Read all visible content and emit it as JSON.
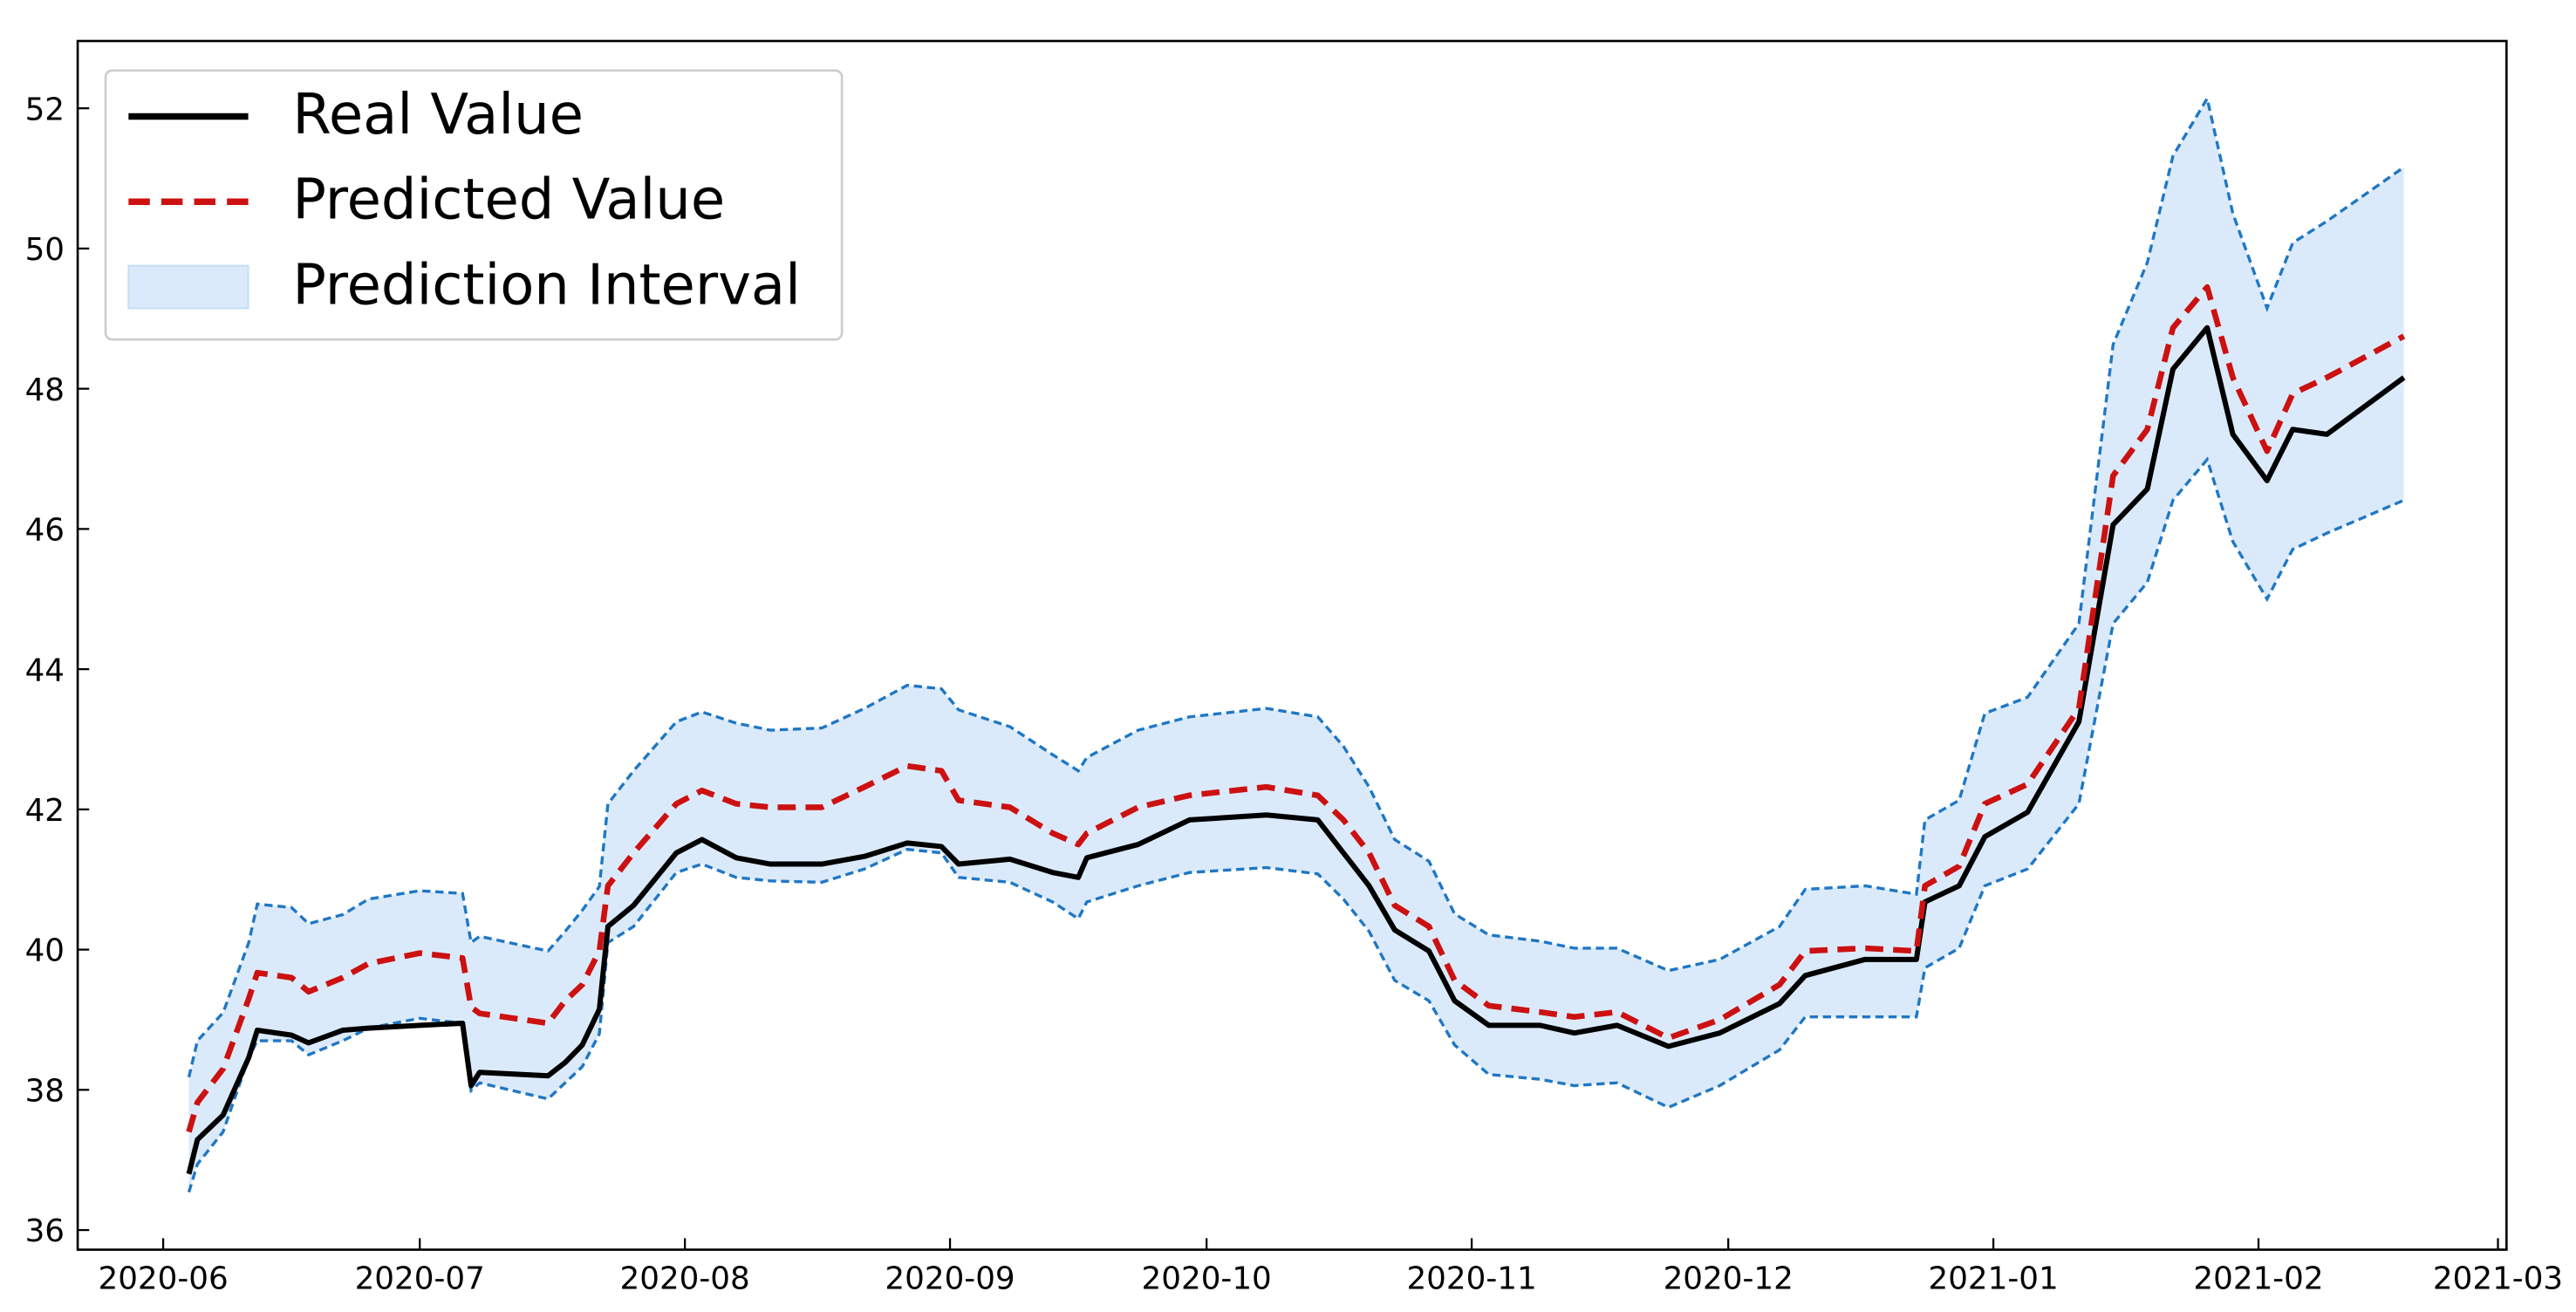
{
  "chart_data": {
    "type": "line",
    "x": [
      "2020-06-04",
      "2020-06-05",
      "2020-06-08",
      "2020-06-11",
      "2020-06-12",
      "2020-06-16",
      "2020-06-18",
      "2020-06-22",
      "2020-06-25",
      "2020-07-01",
      "2020-07-06",
      "2020-07-07",
      "2020-07-08",
      "2020-07-16",
      "2020-07-18",
      "2020-07-20",
      "2020-07-22",
      "2020-07-23",
      "2020-07-26",
      "2020-07-31",
      "2020-08-03",
      "2020-08-07",
      "2020-08-11",
      "2020-08-17",
      "2020-08-22",
      "2020-08-27",
      "2020-08-31",
      "2020-09-02",
      "2020-09-08",
      "2020-09-13",
      "2020-09-16",
      "2020-09-17",
      "2020-09-23",
      "2020-09-29",
      "2020-10-08",
      "2020-10-14",
      "2020-10-17",
      "2020-10-20",
      "2020-10-23",
      "2020-10-27",
      "2020-10-30",
      "2020-11-03",
      "2020-11-09",
      "2020-11-13",
      "2020-11-18",
      "2020-11-24",
      "2020-11-30",
      "2020-12-07",
      "2020-12-10",
      "2020-12-17",
      "2020-12-23",
      "2020-12-24",
      "2020-12-28",
      "2020-12-31",
      "2021-01-05",
      "2021-01-11",
      "2021-01-15",
      "2021-01-19",
      "2021-01-22",
      "2021-01-26",
      "2021-01-29",
      "2021-02-02",
      "2021-02-05",
      "2021-02-09",
      "2021-02-18"
    ],
    "series": [
      {
        "name": "Real Value",
        "color": "#000000",
        "style": "solid",
        "values": [
          36.8,
          37.29,
          37.64,
          38.46,
          38.85,
          38.78,
          38.67,
          38.85,
          38.88,
          38.92,
          38.95,
          38.06,
          38.25,
          38.2,
          38.39,
          38.64,
          39.15,
          40.33,
          40.63,
          41.38,
          41.57,
          41.31,
          41.22,
          41.22,
          41.33,
          41.52,
          41.47,
          41.22,
          41.29,
          41.1,
          41.03,
          41.31,
          41.5,
          41.85,
          41.92,
          41.85,
          41.38,
          40.91,
          40.28,
          39.98,
          39.27,
          38.92,
          38.92,
          38.81,
          38.92,
          38.62,
          38.81,
          39.23,
          39.63,
          39.86,
          39.86,
          40.68,
          40.91,
          41.61,
          41.96,
          43.25,
          46.06,
          46.57,
          48.28,
          48.87,
          47.35,
          46.69,
          47.42,
          47.35,
          48.16
        ]
      },
      {
        "name": "Predicted Value",
        "color": "#cc1111",
        "style": "dashed",
        "values": [
          37.4,
          37.82,
          38.3,
          39.3,
          39.67,
          39.6,
          39.4,
          39.6,
          39.8,
          39.95,
          39.88,
          39.18,
          39.09,
          38.95,
          39.27,
          39.5,
          39.98,
          40.91,
          41.38,
          42.08,
          42.27,
          42.08,
          42.03,
          42.03,
          42.32,
          42.62,
          42.55,
          42.13,
          42.03,
          41.66,
          41.5,
          41.66,
          42.03,
          42.2,
          42.32,
          42.2,
          41.85,
          41.38,
          40.63,
          40.33,
          39.56,
          39.2,
          39.11,
          39.04,
          39.11,
          38.74,
          39.0,
          39.5,
          39.98,
          40.02,
          39.98,
          40.91,
          41.19,
          42.08,
          42.36,
          43.44,
          46.76,
          47.42,
          48.87,
          49.45,
          48.16,
          47.11,
          47.93,
          48.16,
          48.75
        ]
      }
    ],
    "interval": {
      "name": "Prediction Interval",
      "color": "#dbeafa",
      "edge_color": "#1f77c4",
      "lower": [
        36.54,
        36.94,
        37.4,
        38.46,
        38.7,
        38.7,
        38.5,
        38.7,
        38.88,
        39.02,
        38.95,
        37.99,
        38.1,
        37.87,
        38.1,
        38.33,
        38.8,
        40.1,
        40.33,
        41.1,
        41.22,
        41.03,
        40.98,
        40.96,
        41.15,
        41.43,
        41.38,
        41.03,
        40.96,
        40.68,
        40.44,
        40.68,
        40.91,
        41.1,
        41.17,
        41.08,
        40.72,
        40.26,
        39.56,
        39.27,
        38.64,
        38.22,
        38.15,
        38.06,
        38.1,
        37.75,
        38.06,
        38.57,
        39.04,
        39.04,
        39.04,
        39.74,
        40.02,
        40.91,
        41.15,
        42.08,
        44.65,
        45.24,
        46.41,
        46.99,
        45.82,
        45.0,
        45.71,
        45.94,
        46.41
      ],
      "upper": [
        38.18,
        38.7,
        39.1,
        40.1,
        40.65,
        40.6,
        40.37,
        40.5,
        40.72,
        40.84,
        40.8,
        40.1,
        40.19,
        39.98,
        40.26,
        40.56,
        40.9,
        42.08,
        42.55,
        43.25,
        43.39,
        43.23,
        43.13,
        43.16,
        43.44,
        43.77,
        43.72,
        43.42,
        43.18,
        42.78,
        42.55,
        42.74,
        43.13,
        43.32,
        43.44,
        43.32,
        42.9,
        42.32,
        41.57,
        41.26,
        40.51,
        40.21,
        40.12,
        40.02,
        40.02,
        39.7,
        39.86,
        40.33,
        40.86,
        40.91,
        40.79,
        41.85,
        42.13,
        43.37,
        43.6,
        44.65,
        48.63,
        49.8,
        51.32,
        52.14,
        50.5,
        49.15,
        50.08,
        50.39,
        51.16
      ]
    },
    "xlim": [
      "2020-05-22",
      "2021-03-02"
    ],
    "xticks": [
      {
        "value": "2020-06-01",
        "label": "2020-06"
      },
      {
        "value": "2020-07-01",
        "label": "2020-07"
      },
      {
        "value": "2020-08-01",
        "label": "2020-08"
      },
      {
        "value": "2020-09-01",
        "label": "2020-09"
      },
      {
        "value": "2020-10-01",
        "label": "2020-10"
      },
      {
        "value": "2020-11-01",
        "label": "2020-11"
      },
      {
        "value": "2020-12-01",
        "label": "2020-12"
      },
      {
        "value": "2021-01-01",
        "label": "2021-01"
      },
      {
        "value": "2021-02-01",
        "label": "2021-02"
      },
      {
        "value": "2021-03-01",
        "label": "2021-03"
      }
    ],
    "ylim": [
      35.72,
      52.96
    ],
    "yticks": [
      36,
      38,
      40,
      42,
      44,
      46,
      48,
      50,
      52
    ],
    "legend": "upper left",
    "grid": false
  }
}
